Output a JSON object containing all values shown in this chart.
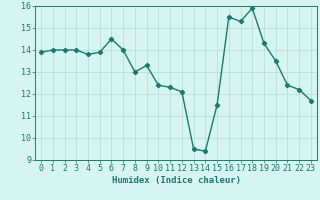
{
  "x": [
    0,
    1,
    2,
    3,
    4,
    5,
    6,
    7,
    8,
    9,
    10,
    11,
    12,
    13,
    14,
    15,
    16,
    17,
    18,
    19,
    20,
    21,
    22,
    23
  ],
  "y": [
    13.9,
    14.0,
    14.0,
    14.0,
    13.8,
    13.9,
    14.5,
    14.0,
    13.0,
    13.3,
    12.4,
    12.3,
    12.1,
    9.5,
    9.4,
    11.5,
    15.5,
    15.3,
    15.9,
    14.3,
    13.5,
    12.4,
    12.2,
    11.7
  ],
  "line_color": "#1a7a6e",
  "marker": "D",
  "markersize": 2.2,
  "linewidth": 1.0,
  "bg_color": "#d6f5f0",
  "grid_color": "#b8e0da",
  "xlabel": "Humidex (Indice chaleur)",
  "ylim": [
    9,
    16
  ],
  "xlim": [
    -0.5,
    23.5
  ],
  "yticks": [
    9,
    10,
    11,
    12,
    13,
    14,
    15,
    16
  ],
  "xticks": [
    0,
    1,
    2,
    3,
    4,
    5,
    6,
    7,
    8,
    9,
    10,
    11,
    12,
    13,
    14,
    15,
    16,
    17,
    18,
    19,
    20,
    21,
    22,
    23
  ],
  "xlabel_fontsize": 6.5,
  "tick_fontsize": 6.0,
  "tick_color": "#1a7a6e",
  "axis_color": "#1a7a6e"
}
